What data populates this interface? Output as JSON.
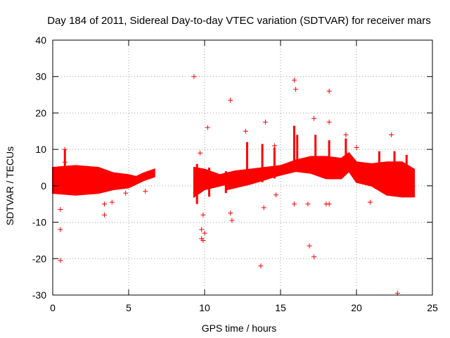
{
  "chart_data": {
    "type": "scatter",
    "title": "Day 184 of 2011, Sidereal Day-to-day VTEC variation (SDTVAR) for receiver mars",
    "xlabel": "GPS time / hours",
    "ylabel": "SDTVAR / TECUs",
    "xlim": [
      0,
      25
    ],
    "ylim": [
      -30,
      40
    ],
    "xticks": [
      0,
      5,
      10,
      15,
      20,
      25
    ],
    "yticks": [
      -30,
      -20,
      -10,
      0,
      10,
      20,
      30,
      40
    ],
    "xtick_labels": [
      "0",
      "5",
      "10",
      "15",
      "20",
      "25"
    ],
    "ytick_labels": [
      "-30",
      "-20",
      "-10",
      "0",
      "10",
      "20",
      "30",
      "40"
    ],
    "grid": true,
    "marker": "+",
    "series_color": "#ff0000",
    "dense_bands": [
      {
        "name": "early-band",
        "points": [
          [
            0.0,
            -2.0,
            5.0
          ],
          [
            1.5,
            -2.5,
            5.5
          ],
          [
            3.0,
            -2.0,
            5.0
          ],
          [
            4.0,
            -1.0,
            3.5
          ],
          [
            5.0,
            -0.5,
            3.0
          ],
          [
            5.5,
            0.5,
            2.5
          ],
          [
            6.0,
            1.5,
            3.5
          ],
          [
            6.7,
            2.5,
            4.5
          ]
        ]
      },
      {
        "name": "midday-band",
        "points": [
          [
            9.3,
            -3.0,
            5.0
          ],
          [
            10.0,
            -1.0,
            4.5
          ],
          [
            11.0,
            0.0,
            3.0
          ],
          [
            12.0,
            1.0,
            4.0
          ],
          [
            13.0,
            2.0,
            4.5
          ],
          [
            14.0,
            2.5,
            5.0
          ],
          [
            15.0,
            3.0,
            5.5
          ],
          [
            16.0,
            4.0,
            7.0
          ],
          [
            17.0,
            3.5,
            8.0
          ],
          [
            18.0,
            2.0,
            8.0
          ],
          [
            19.0,
            2.0,
            7.5
          ],
          [
            19.5,
            4.0,
            9.0
          ],
          [
            20.0,
            1.0,
            6.5
          ],
          [
            21.0,
            0.0,
            6.0
          ],
          [
            22.0,
            -2.5,
            6.5
          ],
          [
            23.0,
            -3.0,
            6.5
          ],
          [
            23.8,
            -3.0,
            4.5
          ]
        ]
      },
      {
        "name": "lower-branch",
        "points": [
          [
            11.5,
            -1.0,
            1.0
          ],
          [
            13.0,
            0.5,
            2.5
          ],
          [
            15.0,
            3.0,
            4.0
          ],
          [
            17.0,
            5.5,
            6.5
          ],
          [
            19.0,
            5.0,
            6.0
          ],
          [
            21.0,
            2.0,
            3.0
          ]
        ]
      }
    ],
    "spikes": [
      {
        "x": 0.8,
        "min": -1.0,
        "max": 10.0
      },
      {
        "x": 15.9,
        "min": 5.0,
        "max": 16.5
      },
      {
        "x": 16.1,
        "min": 5.0,
        "max": 14.0
      },
      {
        "x": 17.3,
        "min": 4.0,
        "max": 14.0
      },
      {
        "x": 18.2,
        "min": 3.0,
        "max": 12.5
      },
      {
        "x": 19.3,
        "min": 4.0,
        "max": 13.0
      },
      {
        "x": 21.5,
        "min": 0.0,
        "max": 9.5
      },
      {
        "x": 22.5,
        "min": -2.0,
        "max": 9.5
      },
      {
        "x": 23.3,
        "min": -2.0,
        "max": 8.5
      },
      {
        "x": 12.8,
        "min": 2.0,
        "max": 12.0
      },
      {
        "x": 13.8,
        "min": 1.0,
        "max": 11.5
      },
      {
        "x": 14.6,
        "min": 2.0,
        "max": 10.5
      },
      {
        "x": 10.3,
        "min": -3.0,
        "max": 5.0
      },
      {
        "x": 9.5,
        "min": -5.0,
        "max": 6.0
      },
      {
        "x": 11.4,
        "min": -2.0,
        "max": 4.0
      }
    ],
    "outliers": [
      [
        0.5,
        -20.5
      ],
      [
        0.5,
        -12.0
      ],
      [
        0.5,
        -6.5
      ],
      [
        0.8,
        10.0
      ],
      [
        0.8,
        6.5
      ],
      [
        3.4,
        -8.0
      ],
      [
        3.4,
        -5.0
      ],
      [
        3.9,
        -4.5
      ],
      [
        4.8,
        -2.0
      ],
      [
        6.1,
        -1.5
      ],
      [
        9.3,
        30.0
      ],
      [
        9.7,
        9.0
      ],
      [
        9.8,
        -12.0
      ],
      [
        9.8,
        -14.5
      ],
      [
        9.9,
        -15.0
      ],
      [
        9.9,
        -8.0
      ],
      [
        10.0,
        -13.0
      ],
      [
        10.2,
        16.0
      ],
      [
        11.7,
        23.5
      ],
      [
        11.7,
        -7.5
      ],
      [
        11.8,
        -9.5
      ],
      [
        12.7,
        15.0
      ],
      [
        13.7,
        -22.0
      ],
      [
        14.0,
        17.5
      ],
      [
        14.6,
        11.0
      ],
      [
        14.7,
        -2.5
      ],
      [
        15.9,
        29.0
      ],
      [
        16.0,
        26.5
      ],
      [
        15.9,
        -5.0
      ],
      [
        16.9,
        -16.5
      ],
      [
        17.2,
        -19.5
      ],
      [
        17.2,
        18.5
      ],
      [
        18.2,
        26.0
      ],
      [
        18.2,
        17.5
      ],
      [
        18.0,
        -5.0
      ],
      [
        18.2,
        -5.0
      ],
      [
        19.3,
        14.0
      ],
      [
        20.0,
        10.5
      ],
      [
        20.9,
        -4.5
      ],
      [
        22.3,
        14.0
      ],
      [
        22.7,
        -29.5
      ],
      [
        16.8,
        -5.0
      ],
      [
        13.9,
        -6.0
      ],
      [
        9.4,
        -2.0
      ],
      [
        10.0,
        0.5
      ]
    ]
  }
}
